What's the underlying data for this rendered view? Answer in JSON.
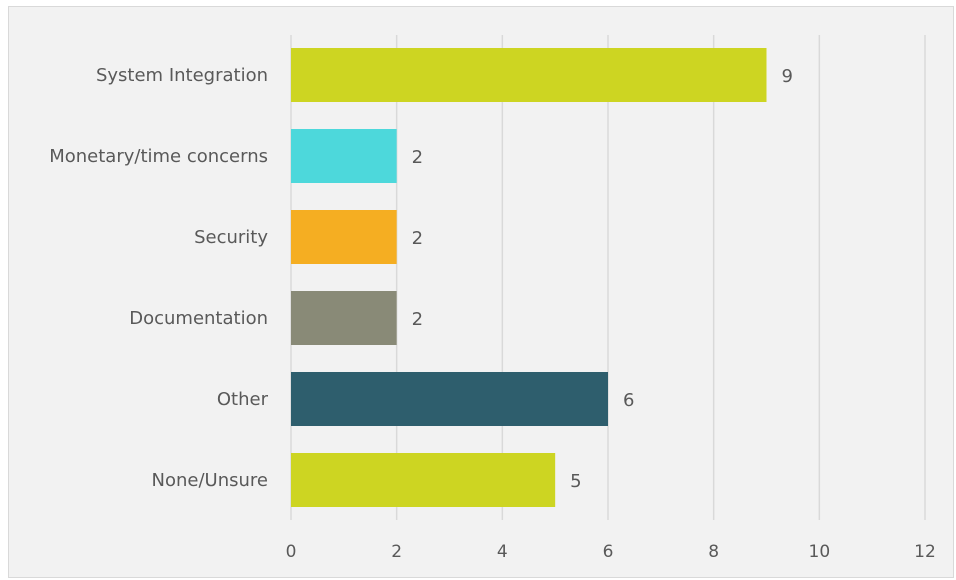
{
  "chart_data": {
    "type": "bar",
    "orientation": "horizontal",
    "title": "",
    "xlabel": "",
    "ylabel": "",
    "categories": [
      "System Integration",
      "Monetary/time concerns",
      "Security",
      "Documentation",
      "Other",
      "None/Unsure"
    ],
    "values": [
      9,
      2,
      2,
      2,
      6,
      5
    ],
    "data_labels": [
      "9",
      "2",
      "2",
      "2",
      "6",
      "5"
    ],
    "colors": [
      "#cdd522",
      "#4dd8db",
      "#f5ae22",
      "#898a77",
      "#2e5e6d",
      "#cdd522"
    ],
    "xlim": [
      0,
      12
    ],
    "xticks": [
      0,
      2,
      4,
      6,
      8,
      10,
      12
    ],
    "xtick_labels": [
      "0",
      "2",
      "4",
      "6",
      "8",
      "10",
      "12"
    ],
    "grid": true,
    "legend": "none",
    "background": "#f2f2f2"
  }
}
